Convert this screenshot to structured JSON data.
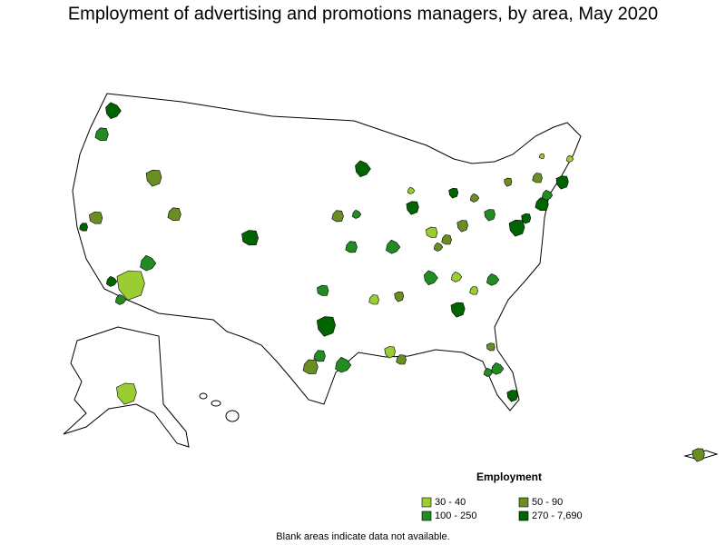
{
  "title": "Employment of advertising and promotions managers, by area, May 2020",
  "legend": {
    "title": "Employment",
    "items": [
      {
        "label": "30 - 40",
        "color": "#9acd32"
      },
      {
        "label": "50 - 90",
        "color": "#6b8e23"
      },
      {
        "label": "100 - 250",
        "color": "#228b22"
      },
      {
        "label": "270 - 7,690",
        "color": "#006400"
      }
    ]
  },
  "note": "Blank areas indicate data not available."
}
